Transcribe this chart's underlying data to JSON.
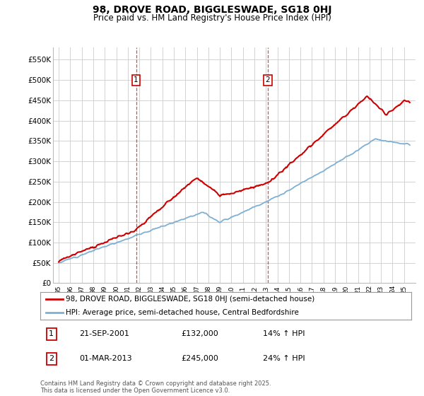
{
  "title": "98, DROVE ROAD, BIGGLESWADE, SG18 0HJ",
  "subtitle": "Price paid vs. HM Land Registry's House Price Index (HPI)",
  "legend_line1": "98, DROVE ROAD, BIGGLESWADE, SG18 0HJ (semi-detached house)",
  "legend_line2": "HPI: Average price, semi-detached house, Central Bedfordshire",
  "annotation1_label": "1",
  "annotation1_date": "21-SEP-2001",
  "annotation1_price": "£132,000",
  "annotation1_hpi": "14% ↑ HPI",
  "annotation2_label": "2",
  "annotation2_date": "01-MAR-2013",
  "annotation2_price": "£245,000",
  "annotation2_hpi": "24% ↑ HPI",
  "footer": "Contains HM Land Registry data © Crown copyright and database right 2025.\nThis data is licensed under the Open Government Licence v3.0.",
  "property_color": "#cc0000",
  "hpi_color": "#7eb0d4",
  "ylim": [
    0,
    580000
  ],
  "yticks": [
    0,
    50000,
    100000,
    150000,
    200000,
    250000,
    300000,
    350000,
    400000,
    450000,
    500000,
    550000
  ],
  "background_color": "#ffffff",
  "grid_color": "#cccccc",
  "sale1_year": 2001.72,
  "sale1_price": 132000,
  "sale2_year": 2013.17,
  "sale2_price": 245000
}
